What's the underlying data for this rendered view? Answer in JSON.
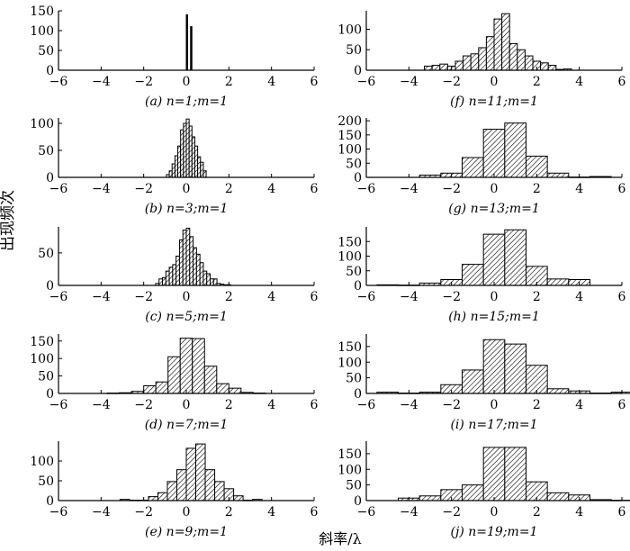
{
  "figure": {
    "ylabel": "出现频次",
    "xlabel": "斜率/λ"
  },
  "chart_data": [
    {
      "type": "bar",
      "caption": "(a) n=1;m=1",
      "xlim": [
        -6,
        6
      ],
      "ylim": [
        0,
        150
      ],
      "xticks": [
        -6,
        -4,
        -2,
        0,
        2,
        4,
        6
      ],
      "yticks": [
        0,
        50,
        100,
        150
      ],
      "bin_width": 0.04,
      "bins": [
        [
          0.0,
          140
        ],
        [
          0.2,
          110
        ]
      ]
    },
    {
      "type": "bar",
      "caption": "(b) n=3;m=1",
      "xlim": [
        -6,
        6
      ],
      "ylim": [
        0,
        110
      ],
      "xticks": [
        -6,
        -4,
        -2,
        0,
        2,
        4,
        6
      ],
      "yticks": [
        0,
        50,
        100
      ],
      "bin_width": 0.133,
      "bins": [
        [
          -0.933,
          5
        ],
        [
          -0.8,
          12
        ],
        [
          -0.667,
          25
        ],
        [
          -0.533,
          40
        ],
        [
          -0.4,
          58
        ],
        [
          -0.267,
          88
        ],
        [
          -0.133,
          100
        ],
        [
          0.0,
          108
        ],
        [
          0.133,
          95
        ],
        [
          0.267,
          75
        ],
        [
          0.4,
          58
        ],
        [
          0.533,
          38
        ],
        [
          0.667,
          28
        ],
        [
          0.8,
          12
        ]
      ]
    },
    {
      "type": "bar",
      "caption": "(c) n=5;m=1",
      "xlim": [
        -6,
        6
      ],
      "ylim": [
        0,
        90
      ],
      "xticks": [
        -6,
        -4,
        -2,
        0,
        2,
        4,
        6
      ],
      "yticks": [
        0,
        50
      ],
      "bin_width": 0.16,
      "bins": [
        [
          -1.44,
          3
        ],
        [
          -1.28,
          10
        ],
        [
          -1.12,
          12
        ],
        [
          -0.96,
          22
        ],
        [
          -0.8,
          28
        ],
        [
          -0.64,
          32
        ],
        [
          -0.48,
          45
        ],
        [
          -0.32,
          70
        ],
        [
          -0.16,
          85
        ],
        [
          0.0,
          88
        ],
        [
          0.16,
          75
        ],
        [
          0.32,
          58
        ],
        [
          0.48,
          48
        ],
        [
          0.64,
          35
        ],
        [
          0.8,
          22
        ],
        [
          0.96,
          18
        ],
        [
          1.12,
          10
        ],
        [
          1.28,
          10
        ],
        [
          1.44,
          3
        ],
        [
          1.6,
          2
        ],
        [
          1.76,
          1
        ],
        [
          1.92,
          1
        ]
      ]
    },
    {
      "type": "bar",
      "caption": "(d) n=7;m=1",
      "xlim": [
        -6,
        6
      ],
      "ylim": [
        0,
        170
      ],
      "xticks": [
        -6,
        -4,
        -2,
        0,
        2,
        4,
        6
      ],
      "yticks": [
        0,
        50,
        100,
        150
      ],
      "bin_width": 0.571,
      "bins": [
        [
          -3.714,
          1
        ],
        [
          -3.143,
          2
        ],
        [
          -2.571,
          6
        ],
        [
          -2.0,
          22
        ],
        [
          -1.429,
          33
        ],
        [
          -0.857,
          105
        ],
        [
          -0.286,
          158
        ],
        [
          0.286,
          157
        ],
        [
          0.857,
          78
        ],
        [
          1.429,
          28
        ],
        [
          2.0,
          15
        ],
        [
          2.571,
          3
        ],
        [
          3.143,
          1
        ]
      ]
    },
    {
      "type": "bar",
      "caption": "(e) n=9;m=1",
      "xlim": [
        -6,
        6
      ],
      "ylim": [
        0,
        150
      ],
      "xticks": [
        -6,
        -4,
        -2,
        0,
        2,
        4,
        6
      ],
      "yticks": [
        0,
        50,
        100
      ],
      "bin_width": 0.444,
      "bins": [
        [
          -3.111,
          3
        ],
        [
          -2.667,
          1
        ],
        [
          -2.222,
          1
        ],
        [
          -1.778,
          10
        ],
        [
          -1.333,
          20
        ],
        [
          -0.889,
          48
        ],
        [
          -0.444,
          78
        ],
        [
          0.0,
          132
        ],
        [
          0.444,
          143
        ],
        [
          0.889,
          78
        ],
        [
          1.333,
          48
        ],
        [
          1.778,
          30
        ],
        [
          2.222,
          12
        ],
        [
          2.667,
          1
        ],
        [
          3.111,
          3
        ]
      ]
    },
    {
      "type": "bar",
      "caption": "(f) n=11;m=1",
      "xlim": [
        -6,
        6
      ],
      "ylim": [
        0,
        145
      ],
      "xticks": [
        -6,
        -4,
        -2,
        0,
        2,
        4,
        6
      ],
      "yticks": [
        0,
        50,
        100
      ],
      "bin_width": 0.364,
      "bins": [
        [
          -3.273,
          10
        ],
        [
          -2.909,
          12
        ],
        [
          -2.545,
          15
        ],
        [
          -2.182,
          10
        ],
        [
          -1.818,
          22
        ],
        [
          -1.455,
          35
        ],
        [
          -1.091,
          40
        ],
        [
          -0.727,
          55
        ],
        [
          -0.364,
          82
        ],
        [
          0.0,
          125
        ],
        [
          0.364,
          138
        ],
        [
          0.727,
          65
        ],
        [
          1.091,
          50
        ],
        [
          1.455,
          35
        ],
        [
          1.818,
          22
        ],
        [
          2.182,
          18
        ],
        [
          2.545,
          12
        ],
        [
          2.909,
          2
        ],
        [
          3.273,
          3
        ]
      ]
    },
    {
      "type": "bar",
      "caption": "(g) n=13;m=1",
      "xlim": [
        -6,
        6
      ],
      "ylim": [
        0,
        210
      ],
      "xticks": [
        -6,
        -4,
        -2,
        0,
        2,
        4,
        6
      ],
      "yticks": [
        0,
        50,
        100,
        150,
        200
      ],
      "bin_width": 1.0,
      "bins": [
        [
          -3.5,
          8
        ],
        [
          -2.5,
          15
        ],
        [
          -1.5,
          70
        ],
        [
          -0.5,
          170
        ],
        [
          0.5,
          192
        ],
        [
          1.5,
          75
        ],
        [
          2.5,
          15
        ],
        [
          3.5,
          1
        ],
        [
          4.5,
          3
        ]
      ]
    },
    {
      "type": "bar",
      "caption": "(h) n=15;m=1",
      "xlim": [
        -6,
        6
      ],
      "ylim": [
        0,
        200
      ],
      "xticks": [
        -6,
        -4,
        -2,
        0,
        2,
        4,
        6
      ],
      "yticks": [
        0,
        50,
        100,
        150
      ],
      "bin_width": 1.0,
      "bins": [
        [
          -5.5,
          2
        ],
        [
          -4.5,
          1
        ],
        [
          -3.5,
          8
        ],
        [
          -2.5,
          20
        ],
        [
          -1.5,
          72
        ],
        [
          -0.5,
          175
        ],
        [
          0.5,
          190
        ],
        [
          1.5,
          65
        ],
        [
          2.5,
          22
        ],
        [
          3.5,
          20
        ]
      ]
    },
    {
      "type": "bar",
      "caption": "(i) n=17;m=1",
      "xlim": [
        -6,
        6
      ],
      "ylim": [
        0,
        190
      ],
      "xticks": [
        -6,
        -4,
        -2,
        0,
        2,
        4,
        6
      ],
      "yticks": [
        0,
        50,
        100,
        150
      ],
      "bin_width": 1.0,
      "bins": [
        [
          -5.5,
          4
        ],
        [
          -4.5,
          1
        ],
        [
          -3.5,
          4
        ],
        [
          -2.5,
          28
        ],
        [
          -1.5,
          75
        ],
        [
          -0.5,
          172
        ],
        [
          0.5,
          158
        ],
        [
          1.5,
          90
        ],
        [
          2.5,
          15
        ],
        [
          3.5,
          8
        ],
        [
          4.5,
          1
        ],
        [
          5.5,
          4
        ]
      ]
    },
    {
      "type": "bar",
      "caption": "(j) n=19;m=1",
      "xlim": [
        -6,
        6
      ],
      "ylim": [
        0,
        190
      ],
      "xticks": [
        -6,
        -4,
        -2,
        0,
        2,
        4,
        6
      ],
      "yticks": [
        0,
        50,
        100,
        150
      ],
      "bin_width": 1.0,
      "bins": [
        [
          -4.5,
          8
        ],
        [
          -3.5,
          15
        ],
        [
          -2.5,
          35
        ],
        [
          -1.5,
          50
        ],
        [
          -0.5,
          170
        ],
        [
          0.5,
          170
        ],
        [
          1.5,
          60
        ],
        [
          2.5,
          25
        ],
        [
          3.5,
          18
        ],
        [
          4.5,
          3
        ],
        [
          5.5,
          1
        ]
      ]
    }
  ]
}
